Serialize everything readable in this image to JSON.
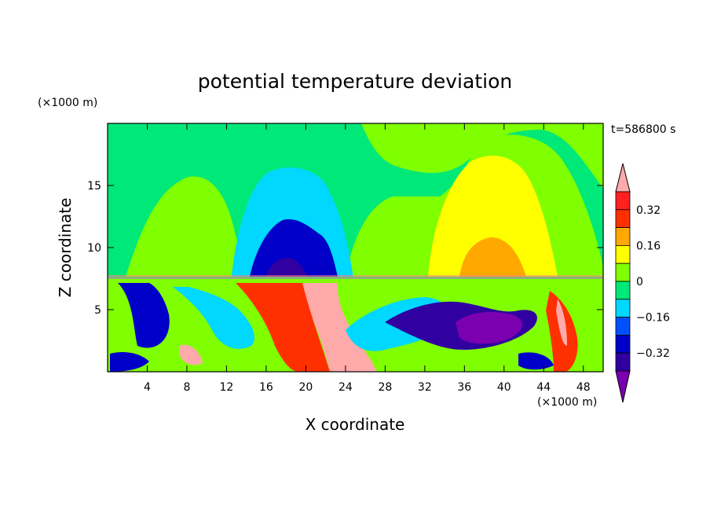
{
  "chart_data": {
    "type": "heatmap",
    "title": "potential temperature deviation",
    "xlabel": "X coordinate",
    "ylabel": "Z coordinate",
    "x_unit": "(×1000 m)",
    "y_unit": "(×1000 m)",
    "time_label": "t=586800 s",
    "xlim": [
      0,
      50
    ],
    "ylim": [
      0,
      20
    ],
    "x_ticks": [
      4,
      8,
      12,
      16,
      20,
      24,
      28,
      32,
      36,
      40,
      44,
      48
    ],
    "y_ticks": [
      5,
      10,
      15
    ],
    "colorbar": {
      "levels": [
        -0.4,
        -0.32,
        -0.24,
        -0.16,
        -0.08,
        0,
        0.08,
        0.16,
        0.24,
        0.32,
        0.4
      ],
      "labels": [
        "0.32",
        "0.16",
        "0",
        "−0.16",
        "−0.32"
      ],
      "label_values": [
        0.32,
        0.16,
        0,
        -0.16,
        -0.32
      ],
      "colors": [
        "#7a00b0",
        "#3000a0",
        "#0000c8",
        "#0050ff",
        "#00d8ff",
        "#00e878",
        "#80ff00",
        "#ffff00",
        "#ffa800",
        "#ff3000",
        "#ff2020",
        "#ffaaaa"
      ],
      "extend": "both"
    },
    "regions": [
      {
        "value": 0.04,
        "x": [
          0,
          50
        ],
        "z": [
          7.6,
          20
        ]
      },
      {
        "value": 0.1,
        "x": [
          2,
          12
        ],
        "z": [
          7.6,
          16
        ]
      },
      {
        "value": 0.1,
        "x": [
          26,
          48
        ],
        "z": [
          7.6,
          19
        ]
      },
      {
        "value": -0.06,
        "x": [
          13,
          24
        ],
        "z": [
          7.6,
          17
        ]
      },
      {
        "value": -0.2,
        "x": [
          16,
          22
        ],
        "z": [
          7.6,
          12.5
        ]
      },
      {
        "value": -0.3,
        "x": [
          17,
          21
        ],
        "z": [
          7.6,
          9
        ]
      },
      {
        "value": 0.2,
        "x": [
          34,
          44
        ],
        "z": [
          7.6,
          17.5
        ]
      },
      {
        "value": 0.28,
        "x": [
          36,
          43
        ],
        "z": [
          7.6,
          11
        ]
      },
      {
        "value": 0.38,
        "x": [
          18,
          26
        ],
        "z": [
          0,
          7.6
        ]
      },
      {
        "value": -0.35,
        "x": [
          35,
          45
        ],
        "z": [
          2.5,
          6
        ]
      },
      {
        "value": -0.25,
        "x": [
          26,
          34
        ],
        "z": [
          2,
          5.5
        ]
      }
    ]
  }
}
